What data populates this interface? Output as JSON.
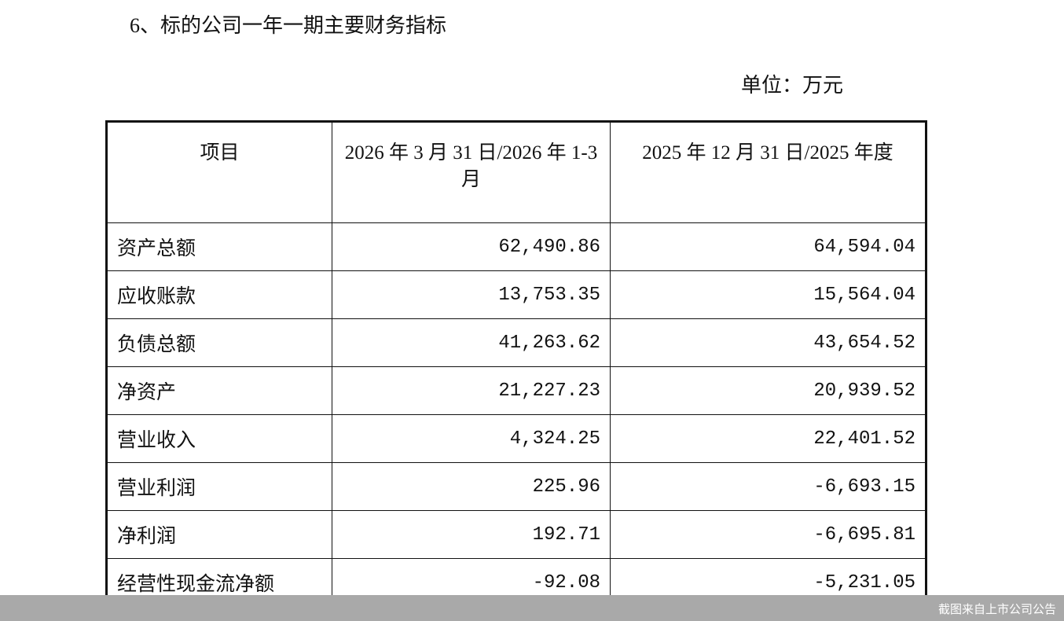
{
  "header": {
    "title": "6、标的公司一年一期主要财务指标",
    "unit": "单位：万元"
  },
  "table": {
    "columns": [
      "项目",
      "2026 年 3 月 31 日/2026 年 1-3 月",
      "2025 年 12 月 31 日/2025 年度"
    ],
    "rows": [
      [
        "资产总额",
        "62,490.86",
        "64,594.04"
      ],
      [
        "应收账款",
        "13,753.35",
        "15,564.04"
      ],
      [
        "负债总额",
        "41,263.62",
        "43,654.52"
      ],
      [
        "净资产",
        "21,227.23",
        "20,939.52"
      ],
      [
        "营业收入",
        "4,324.25",
        "22,401.52"
      ],
      [
        "营业利润",
        "225.96",
        "-6,693.15"
      ],
      [
        "净利润",
        "192.71",
        "-6,695.81"
      ],
      [
        "经营性现金流净额",
        "-92.08",
        "-5,231.05"
      ]
    ]
  },
  "footer": {
    "caption": "截图来自上市公司公告"
  }
}
